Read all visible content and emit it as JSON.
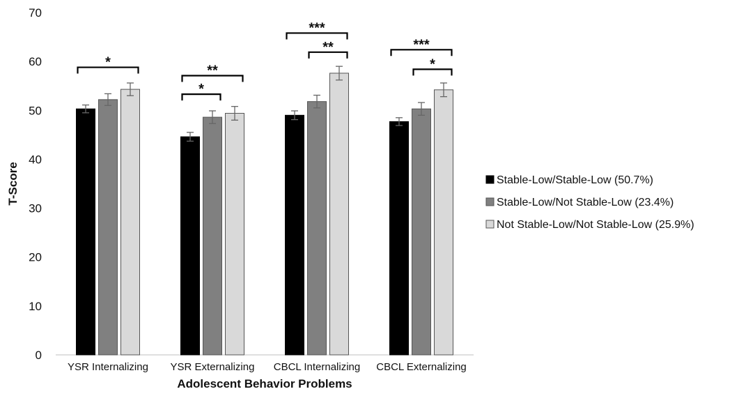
{
  "chart_data": {
    "type": "bar",
    "title": "",
    "xlabel": "Adolescent Behavior Problems",
    "ylabel": "T-Score",
    "ylim": [
      0,
      70
    ],
    "yticks": [
      0,
      10,
      20,
      30,
      40,
      50,
      60,
      70
    ],
    "grid": false,
    "legend_position": "right",
    "categories": [
      "YSR Internalizing",
      "YSR Externalizing",
      "CBCL Internalizing",
      "CBCL Externalizing"
    ],
    "series": [
      {
        "name": "Stable-Low/Stable-Low (50.7%)",
        "color": "#000000",
        "values": [
          50.3,
          44.6,
          49.0,
          47.7
        ],
        "errors": [
          0.8,
          0.9,
          0.9,
          0.8
        ]
      },
      {
        "name": "Stable-Low/Not Stable-Low (23.4%)",
        "color": "#808080",
        "values": [
          52.2,
          48.6,
          51.8,
          50.3
        ],
        "errors": [
          1.2,
          1.3,
          1.3,
          1.3
        ]
      },
      {
        "name": "Not Stable-Low/Not Stable-Low (25.9%)",
        "color": "#d9d9d9",
        "values": [
          54.3,
          49.4,
          57.6,
          54.2
        ],
        "errors": [
          1.3,
          1.4,
          1.4,
          1.4
        ]
      }
    ],
    "significance": [
      {
        "category": 0,
        "from": 0,
        "to": 2,
        "y": 58.8,
        "label": "*"
      },
      {
        "category": 1,
        "from": 0,
        "to": 1,
        "y": 53.3,
        "label": "*"
      },
      {
        "category": 1,
        "from": 0,
        "to": 2,
        "y": 57.1,
        "label": "**"
      },
      {
        "category": 2,
        "from": 0,
        "to": 2,
        "y": 65.8,
        "label": "***"
      },
      {
        "category": 2,
        "from": 1,
        "to": 2,
        "y": 61.9,
        "label": "**"
      },
      {
        "category": 3,
        "from": 0,
        "to": 2,
        "y": 62.4,
        "label": "***"
      },
      {
        "category": 3,
        "from": 1,
        "to": 2,
        "y": 58.4,
        "label": "*"
      }
    ]
  }
}
